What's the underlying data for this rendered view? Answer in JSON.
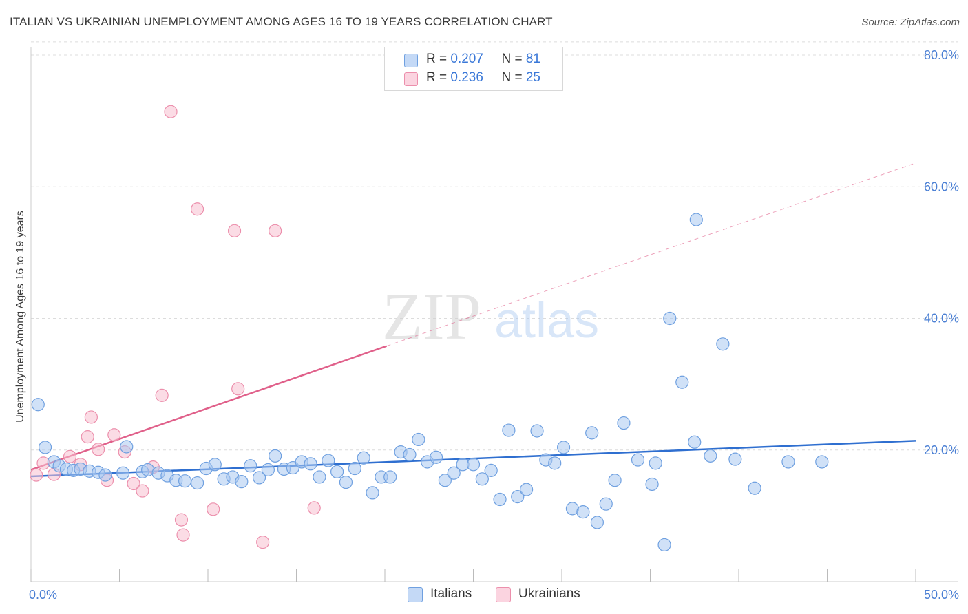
{
  "title": "ITALIAN VS UKRAINIAN UNEMPLOYMENT AMONG AGES 16 TO 19 YEARS CORRELATION CHART",
  "source": "Source: ZipAtlas.com",
  "watermark": {
    "zip": "ZIP",
    "atlas": "atlas"
  },
  "legend": {
    "italians": {
      "r_label": "R = ",
      "r_value": "0.207",
      "n_label": "N = ",
      "n_value": "81",
      "color": "#a9c8f0"
    },
    "ukrainians": {
      "r_label": "R = ",
      "r_value": "0.236",
      "n_label": "N = ",
      "n_value": "25",
      "color": "#f7bfd0"
    }
  },
  "bottom_legend": {
    "italians": "Italians",
    "ukrainians": "Ukrainians"
  },
  "chart_data": {
    "type": "scatter",
    "title": "ITALIAN VS UKRAINIAN UNEMPLOYMENT AMONG AGES 16 TO 19 YEARS CORRELATION CHART",
    "xlabel": "",
    "ylabel": "Unemployment Among Ages 16 to 19 years",
    "xlim": [
      0,
      50
    ],
    "ylim": [
      0,
      82
    ],
    "x_tick_labels": [
      "0.0%",
      "50.0%"
    ],
    "y_ticks": [
      20,
      40,
      60,
      80
    ],
    "y_tick_labels": [
      "20.0%",
      "40.0%",
      "60.0%",
      "80.0%"
    ],
    "grid": true,
    "legend_position": "top-center",
    "series": [
      {
        "name": "Italians",
        "color": "#a9c8f0",
        "stroke": "#6fa0e0",
        "trend": {
          "x": [
            0,
            50
          ],
          "y": [
            16.0,
            21.4
          ],
          "color": "#2f6fd0",
          "dashed_extension": false
        },
        "points": [
          [
            0.4,
            26.9
          ],
          [
            0.8,
            20.4
          ],
          [
            1.3,
            18.2
          ],
          [
            1.6,
            17.6
          ],
          [
            2.0,
            17.1
          ],
          [
            2.4,
            16.9
          ],
          [
            2.8,
            17.1
          ],
          [
            3.3,
            16.8
          ],
          [
            3.8,
            16.6
          ],
          [
            4.2,
            16.2
          ],
          [
            5.2,
            16.5
          ],
          [
            5.4,
            20.5
          ],
          [
            6.3,
            16.7
          ],
          [
            6.6,
            17.0
          ],
          [
            7.2,
            16.5
          ],
          [
            7.7,
            16.1
          ],
          [
            8.2,
            15.4
          ],
          [
            8.7,
            15.3
          ],
          [
            9.4,
            15.0
          ],
          [
            9.9,
            17.2
          ],
          [
            10.4,
            17.8
          ],
          [
            10.9,
            15.6
          ],
          [
            11.4,
            15.9
          ],
          [
            11.9,
            15.2
          ],
          [
            12.4,
            17.6
          ],
          [
            12.9,
            15.8
          ],
          [
            13.4,
            17.0
          ],
          [
            13.8,
            19.1
          ],
          [
            14.3,
            17.1
          ],
          [
            14.8,
            17.3
          ],
          [
            15.3,
            18.2
          ],
          [
            15.8,
            17.9
          ],
          [
            16.3,
            15.9
          ],
          [
            16.8,
            18.4
          ],
          [
            17.3,
            16.7
          ],
          [
            17.8,
            15.1
          ],
          [
            18.3,
            17.2
          ],
          [
            18.8,
            18.8
          ],
          [
            19.3,
            13.5
          ],
          [
            19.8,
            15.9
          ],
          [
            20.3,
            15.9
          ],
          [
            20.9,
            19.7
          ],
          [
            21.4,
            19.3
          ],
          [
            21.9,
            21.6
          ],
          [
            22.4,
            18.2
          ],
          [
            22.9,
            18.9
          ],
          [
            23.4,
            15.4
          ],
          [
            23.9,
            16.5
          ],
          [
            24.4,
            17.8
          ],
          [
            25.0,
            17.8
          ],
          [
            25.5,
            15.6
          ],
          [
            26.0,
            16.9
          ],
          [
            26.5,
            12.5
          ],
          [
            27.0,
            23.0
          ],
          [
            27.5,
            12.9
          ],
          [
            28.0,
            14.0
          ],
          [
            28.6,
            22.9
          ],
          [
            29.1,
            18.5
          ],
          [
            29.6,
            18.0
          ],
          [
            30.1,
            20.4
          ],
          [
            30.6,
            11.1
          ],
          [
            31.2,
            10.6
          ],
          [
            31.7,
            22.6
          ],
          [
            32.0,
            9.0
          ],
          [
            32.5,
            11.8
          ],
          [
            33.0,
            15.4
          ],
          [
            33.5,
            24.1
          ],
          [
            34.3,
            18.5
          ],
          [
            35.1,
            14.8
          ],
          [
            35.3,
            18.0
          ],
          [
            35.8,
            5.6
          ],
          [
            36.1,
            40.0
          ],
          [
            36.8,
            30.3
          ],
          [
            37.5,
            21.2
          ],
          [
            37.6,
            55.0
          ],
          [
            38.4,
            19.1
          ],
          [
            39.1,
            36.1
          ],
          [
            39.8,
            18.6
          ],
          [
            40.9,
            14.2
          ],
          [
            42.8,
            18.2
          ],
          [
            44.7,
            18.2
          ]
        ]
      },
      {
        "name": "Ukrainians",
        "color": "#f7bfd0",
        "stroke": "#ec8fac",
        "trend": {
          "x": [
            0,
            20.1
          ],
          "y": [
            17.0,
            35.8
          ],
          "color": "#e0608a",
          "extension_x": [
            20.1,
            50
          ],
          "extension_y": [
            35.8,
            63.6
          ]
        },
        "points": [
          [
            0.3,
            16.2
          ],
          [
            0.7,
            18.0
          ],
          [
            1.3,
            16.3
          ],
          [
            2.2,
            19.0
          ],
          [
            2.8,
            17.8
          ],
          [
            3.2,
            22.0
          ],
          [
            3.4,
            25.0
          ],
          [
            3.8,
            20.1
          ],
          [
            4.3,
            15.4
          ],
          [
            4.7,
            22.3
          ],
          [
            5.3,
            19.7
          ],
          [
            5.8,
            14.9
          ],
          [
            6.3,
            13.8
          ],
          [
            6.9,
            17.4
          ],
          [
            7.4,
            28.3
          ],
          [
            7.9,
            71.4
          ],
          [
            8.5,
            9.4
          ],
          [
            8.6,
            7.1
          ],
          [
            9.4,
            56.6
          ],
          [
            10.3,
            11.0
          ],
          [
            11.5,
            53.3
          ],
          [
            11.7,
            29.3
          ],
          [
            13.1,
            6.0
          ],
          [
            13.8,
            53.3
          ],
          [
            16.0,
            11.2
          ]
        ]
      }
    ]
  }
}
